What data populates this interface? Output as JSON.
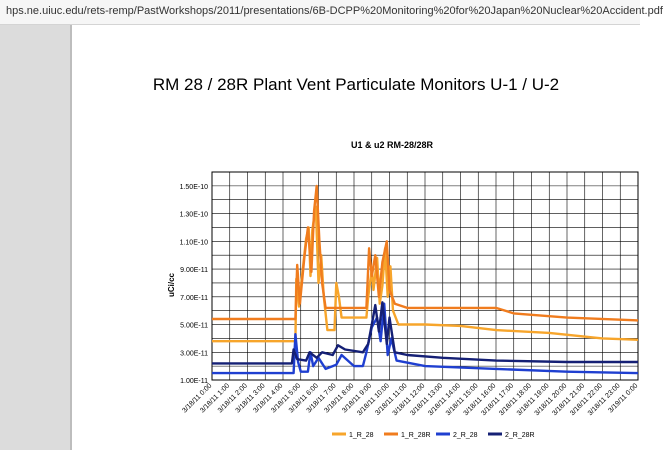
{
  "browser": {
    "url": "hps.ne.uiuc.edu/rets-remp/PastWorkshops/2011/presentations/6B-DCPP%20Monitoring%20for%20Japan%20Nuclear%20Accident.pdf"
  },
  "slide": {
    "title": "RM 28 / 28R  Plant Vent Particulate Monitors  U-1 / U-2"
  },
  "chart_data": {
    "type": "line",
    "title": "U1 & u2 RM-28/28R",
    "ylabel": "uCi/cc",
    "xlabel": "",
    "ylim": [
      1e-11,
      1.6e-10
    ],
    "yticks": [
      "1.00E-11",
      "3.00E-11",
      "5.00E-11",
      "7.00E-11",
      "9.00E-11",
      "1.10E-10",
      "1.30E-10",
      "1.50E-10"
    ],
    "ytick_values": [
      1e-11,
      3e-11,
      5e-11,
      7e-11,
      9e-11,
      1.1e-10,
      1.3e-10,
      1.5e-10
    ],
    "xticks": [
      "3/18/11 0:00",
      "3/18/11 1:00",
      "3/18/11 2:00",
      "3/18/11 3:00",
      "3/18/11 4:00",
      "3/18/11 5:00",
      "3/18/11 6:00",
      "3/18/11 7:00",
      "3/18/11 8:00",
      "3/18/11 9:00",
      "3/18/11 10:00",
      "3/18/11 11:00",
      "3/18/11 12:00",
      "3/18/11 13:00",
      "3/18/11 14:00",
      "3/18/11 15:00",
      "3/18/11 16:00",
      "3/18/11 17:00",
      "3/18/11 18:00",
      "3/18/11 19:00",
      "3/18/11 20:00",
      "3/18/11 21:00",
      "3/18/11 22:00",
      "3/18/11 23:00",
      "3/19/11 0:00"
    ],
    "x_hours_range": [
      0,
      24
    ],
    "grid": true,
    "legend_position": "bottom",
    "series": [
      {
        "name": "1_R_28",
        "color": "#f7a52b",
        "points": [
          [
            0,
            3.8e-11
          ],
          [
            4.7,
            3.8e-11
          ],
          [
            4.75,
            8.3e-11
          ],
          [
            4.9,
            6.3e-11
          ],
          [
            5.1,
            8.8e-11
          ],
          [
            5.3,
            1.12e-10
          ],
          [
            5.45,
            1.2e-10
          ],
          [
            5.55,
            8.5e-11
          ],
          [
            5.65,
            1.18e-10
          ],
          [
            5.85,
            1.35e-10
          ],
          [
            6.0,
            8e-11
          ],
          [
            6.15,
            1e-10
          ],
          [
            6.3,
            7e-11
          ],
          [
            6.5,
            4.6e-11
          ],
          [
            6.9,
            4.6e-11
          ],
          [
            7.0,
            8e-11
          ],
          [
            7.15,
            7e-11
          ],
          [
            7.3,
            5.5e-11
          ],
          [
            8.0,
            5.5e-11
          ],
          [
            8.7,
            5.5e-11
          ],
          [
            8.8,
            7e-11
          ],
          [
            9.0,
            9e-11
          ],
          [
            9.1,
            7.5e-11
          ],
          [
            9.3,
            9.8e-11
          ],
          [
            9.45,
            6.5e-11
          ],
          [
            9.6,
            7.8e-11
          ],
          [
            9.75,
            1.05e-10
          ],
          [
            9.9,
            7e-11
          ],
          [
            10.05,
            9.2e-11
          ],
          [
            10.2,
            6e-11
          ],
          [
            10.5,
            5e-11
          ],
          [
            12,
            5e-11
          ],
          [
            14,
            4.9e-11
          ],
          [
            16,
            4.6e-11
          ],
          [
            19,
            4.4e-11
          ],
          [
            22,
            4e-11
          ],
          [
            24,
            3.9e-11
          ]
        ]
      },
      {
        "name": "1_R_28R",
        "color": "#f07c1e",
        "points": [
          [
            0,
            5.4e-11
          ],
          [
            4.7,
            5.4e-11
          ],
          [
            4.8,
            9.3e-11
          ],
          [
            4.95,
            6.5e-11
          ],
          [
            5.2,
            9.8e-11
          ],
          [
            5.4,
            1.2e-10
          ],
          [
            5.6,
            8.8e-11
          ],
          [
            5.75,
            1.32e-10
          ],
          [
            5.9,
            1.5e-10
          ],
          [
            6.05,
            1.1e-10
          ],
          [
            6.2,
            8e-11
          ],
          [
            6.4,
            6.2e-11
          ],
          [
            7.0,
            6.2e-11
          ],
          [
            8.7,
            6.2e-11
          ],
          [
            8.85,
            1.05e-10
          ],
          [
            9.0,
            8.5e-11
          ],
          [
            9.2,
            1e-10
          ],
          [
            9.4,
            7e-11
          ],
          [
            9.6,
            9.5e-11
          ],
          [
            9.85,
            1.1e-10
          ],
          [
            10.0,
            7.5e-11
          ],
          [
            10.3,
            6.5e-11
          ],
          [
            11,
            6.2e-11
          ],
          [
            16,
            6.2e-11
          ],
          [
            17,
            5.8e-11
          ],
          [
            20,
            5.5e-11
          ],
          [
            24,
            5.3e-11
          ]
        ]
      },
      {
        "name": "2_R_28",
        "color": "#1f3fd0",
        "points": [
          [
            0,
            1.5e-11
          ],
          [
            4.6,
            1.5e-11
          ],
          [
            4.7,
            4.3e-11
          ],
          [
            4.85,
            2.3e-11
          ],
          [
            5.0,
            1.6e-11
          ],
          [
            5.4,
            1.6e-11
          ],
          [
            5.55,
            3e-11
          ],
          [
            5.7,
            2e-11
          ],
          [
            6.0,
            2.6e-11
          ],
          [
            6.4,
            1.8e-11
          ],
          [
            7.0,
            2.1e-11
          ],
          [
            7.3,
            2.8e-11
          ],
          [
            8.0,
            2e-11
          ],
          [
            8.5,
            2e-11
          ],
          [
            8.7,
            3e-11
          ],
          [
            9.0,
            4.8e-11
          ],
          [
            9.3,
            5.5e-11
          ],
          [
            9.5,
            3.8e-11
          ],
          [
            9.7,
            6.5e-11
          ],
          [
            9.9,
            2.8e-11
          ],
          [
            10.1,
            4e-11
          ],
          [
            10.4,
            2.4e-11
          ],
          [
            12,
            2e-11
          ],
          [
            16,
            1.8e-11
          ],
          [
            20,
            1.6e-11
          ],
          [
            24,
            1.5e-11
          ]
        ]
      },
      {
        "name": "2_R_28R",
        "color": "#152075",
        "points": [
          [
            0,
            2.2e-11
          ],
          [
            4.5,
            2.2e-11
          ],
          [
            4.6,
            3.2e-11
          ],
          [
            4.8,
            2.5e-11
          ],
          [
            5.3,
            2.4e-11
          ],
          [
            5.5,
            3e-11
          ],
          [
            5.9,
            2.6e-11
          ],
          [
            6.2,
            3e-11
          ],
          [
            6.8,
            2.8e-11
          ],
          [
            7.1,
            3.5e-11
          ],
          [
            7.5,
            3.2e-11
          ],
          [
            8.5,
            3e-11
          ],
          [
            8.8,
            3.6e-11
          ],
          [
            9.0,
            5e-11
          ],
          [
            9.2,
            6.4e-11
          ],
          [
            9.4,
            4.5e-11
          ],
          [
            9.6,
            6.6e-11
          ],
          [
            9.85,
            3.6e-11
          ],
          [
            10.0,
            5.5e-11
          ],
          [
            10.3,
            3e-11
          ],
          [
            11,
            2.8e-11
          ],
          [
            13,
            2.6e-11
          ],
          [
            16,
            2.4e-11
          ],
          [
            20,
            2.3e-11
          ],
          [
            24,
            2.3e-11
          ]
        ]
      }
    ]
  }
}
